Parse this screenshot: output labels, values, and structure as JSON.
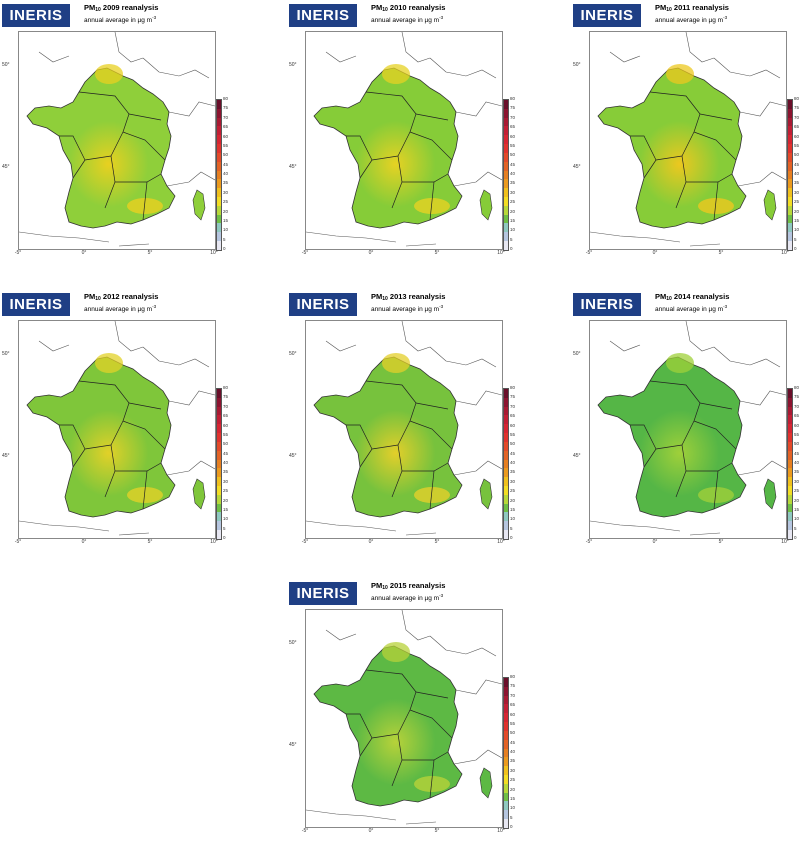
{
  "logo_text": "INERIS",
  "subtitle_text": "annual average in µg m",
  "subtitle_sup": "-3",
  "title_prefix": "PM",
  "title_sub": "10",
  "lat_labels": [
    "50°",
    "45°"
  ],
  "lon_labels": [
    "-5°",
    "0°",
    "5°",
    "10°"
  ],
  "colorbar_ticks": [
    "80",
    "75",
    "70",
    "65",
    "60",
    "55",
    "50",
    "45",
    "40",
    "35",
    "30",
    "25",
    "20",
    "15",
    "10",
    "5",
    "0"
  ],
  "colorbar_colors": [
    "#6a0f2a",
    "#8c1430",
    "#a81a33",
    "#c21f35",
    "#d62633",
    "#e0332e",
    "#e34a2a",
    "#e36326",
    "#e67f21",
    "#eb9a1f",
    "#f0c01e",
    "#f3dd25",
    "#b8d83a",
    "#6fbf45",
    "#8fc9c0",
    "#b6c6e0",
    "#e7e7f2"
  ],
  "panels": [
    {
      "year": "2009",
      "title_suffix": " 2009 reanalysis",
      "base_color": "#8fcf3a",
      "hot_color": "#e8d020"
    },
    {
      "year": "2010",
      "title_suffix": " 2010 reanalysis",
      "base_color": "#86cc38",
      "hot_color": "#e6d223"
    },
    {
      "year": "2011",
      "title_suffix": " 2011 reanalysis",
      "base_color": "#87cc38",
      "hot_color": "#ecc81f"
    },
    {
      "year": "2012",
      "title_suffix": " 2012 reanalysis",
      "base_color": "#7fc63a",
      "hot_color": "#e2d128"
    },
    {
      "year": "2013",
      "title_suffix": " 2013 reanalysis",
      "base_color": "#77c23d",
      "hot_color": "#e3cf2a"
    },
    {
      "year": "2014",
      "title_suffix": " 2014 reanalysis",
      "base_color": "#55b646",
      "hot_color": "#9fd03a"
    },
    {
      "year": "2015",
      "title_suffix": " 2015 reanalysis",
      "base_color": "#5db944",
      "hot_color": "#b7d23a"
    }
  ]
}
